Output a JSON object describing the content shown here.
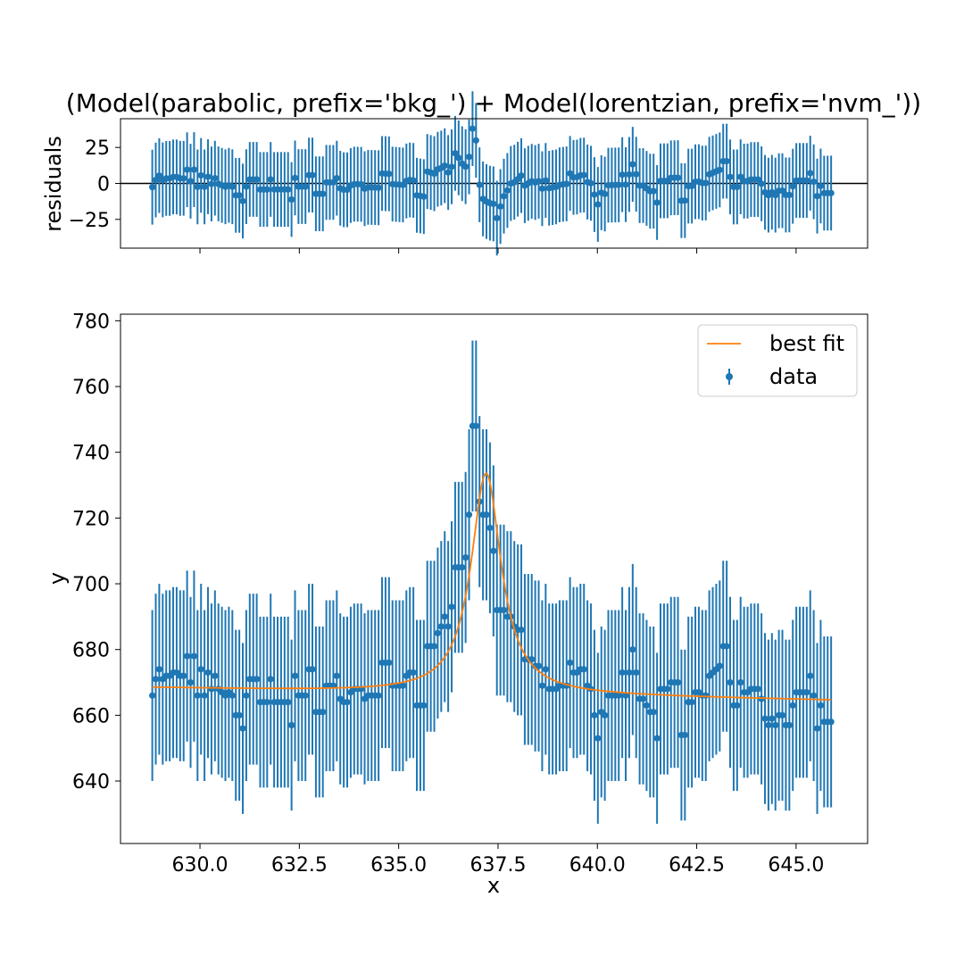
{
  "colors": {
    "data": "#1f77b4",
    "errorbar": "#1f77b4",
    "fit": "#ff7f0e",
    "axis": "#000000",
    "zero_line": "#000000"
  },
  "chart_data": [
    {
      "id": "residuals",
      "type": "scatter",
      "title": "(Model(parabolic, prefix='bkg_') + Model(lorentzian, prefix='nvm_'))",
      "xlabel": "",
      "ylabel": "residuals",
      "xlim": [
        628.0,
        646.8
      ],
      "ylim": [
        -45,
        45
      ],
      "yticks": [
        -25,
        0,
        25
      ],
      "ytick_labels": [
        "−25",
        "0",
        "25"
      ],
      "xticks": [
        630.0,
        632.5,
        635.0,
        637.5,
        640.0,
        642.5,
        645.0
      ],
      "xtick_labels": [
        "",
        "",
        "",
        "",
        "",
        "",
        ""
      ],
      "hline": 0,
      "errorbar_series": {
        "name": "residuals"
      }
    },
    {
      "id": "fit",
      "type": "scatter",
      "title": "",
      "xlabel": "x",
      "ylabel": "y",
      "xlim": [
        628.0,
        646.8
      ],
      "ylim": [
        621,
        782
      ],
      "yticks": [
        640,
        660,
        680,
        700,
        720,
        740,
        760,
        780
      ],
      "ytick_labels": [
        "640",
        "660",
        "680",
        "700",
        "720",
        "740",
        "760",
        "780"
      ],
      "xticks": [
        630.0,
        632.5,
        635.0,
        637.5,
        640.0,
        642.5,
        645.0
      ],
      "xtick_labels": [
        "630.0",
        "632.5",
        "635.0",
        "637.5",
        "640.0",
        "642.5",
        "645.0"
      ],
      "legend": {
        "placement": "top-right",
        "entries": [
          {
            "label": "best fit",
            "kind": "line"
          },
          {
            "label": "data",
            "kind": "errorbar"
          }
        ]
      },
      "model": {
        "bkg_a": 0.0,
        "bkg_b": -0.226,
        "bkg_c": 810.5,
        "nvm_amplitude": 97.0,
        "nvm_center": 637.2,
        "nvm_sigma": 0.46
      },
      "x_start": 628.8,
      "x_step": 0.0876,
      "data_y": [
        666,
        671,
        674,
        671,
        672,
        672,
        673,
        673,
        672,
        672,
        678,
        670,
        678,
        666,
        674,
        666,
        673,
        668,
        672,
        668,
        667,
        666,
        667,
        666,
        660,
        660,
        656,
        666,
        671,
        671,
        671,
        664,
        664,
        664,
        671,
        664,
        664,
        664,
        664,
        664,
        657,
        672,
        666,
        666,
        666,
        674,
        674,
        661,
        661,
        661,
        669,
        669,
        669,
        672,
        665,
        664,
        664,
        667,
        668,
        668,
        668,
        665,
        666,
        666,
        666,
        666,
        676,
        676,
        676,
        669,
        669,
        669,
        669,
        672,
        673,
        673,
        663,
        663,
        663,
        681,
        681,
        681,
        685,
        687,
        690,
        687,
        693,
        705,
        705,
        705,
        708,
        721,
        748,
        748,
        725,
        721,
        721,
        717,
        710,
        692,
        692,
        692,
        690,
        690,
        687,
        686,
        686,
        677,
        677,
        677,
        675,
        675,
        669,
        674,
        668,
        668,
        668,
        669,
        669,
        669,
        676,
        673,
        673,
        674,
        674,
        669,
        668,
        660,
        653,
        661,
        660,
        666,
        666,
        666,
        666,
        673,
        666,
        673,
        680,
        673,
        665,
        665,
        663,
        661,
        661,
        653,
        668,
        668,
        668,
        670,
        670,
        670,
        654,
        654,
        664,
        664,
        667,
        667,
        666,
        666,
        672,
        673,
        674,
        675,
        681,
        681,
        670,
        663,
        663,
        670,
        667,
        667,
        668,
        668,
        668,
        665,
        659,
        657,
        659,
        657,
        660,
        660,
        657,
        657,
        663,
        667,
        667,
        667,
        667,
        672,
        666,
        656,
        663,
        658,
        658,
        658
      ],
      "err_y": 26.0
    }
  ]
}
